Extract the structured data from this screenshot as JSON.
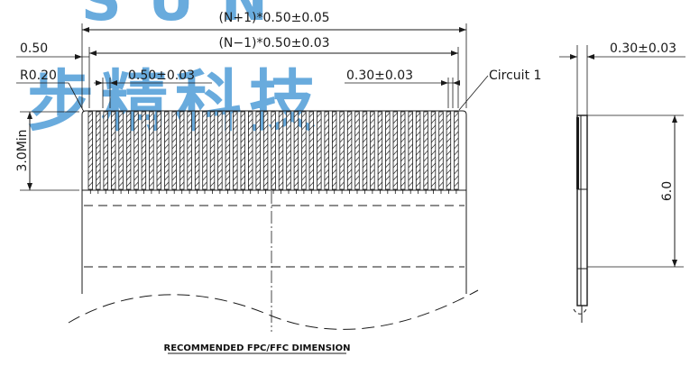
{
  "watermark": {
    "latin": "SUN",
    "chinese": "步精科技",
    "color": "#2f8ad0"
  },
  "dimensions": {
    "overall_width": "(N+1)*0.50±0.05",
    "inner_width": "(N−1)*0.50±0.03",
    "edge_offset": "0.50",
    "corner_radius": "R0.20",
    "pitch": "0.50±0.03",
    "conductor_width": "0.30±0.03",
    "circuit_label": "Circuit 1",
    "min_length": "3.0Min",
    "thickness": "0.30±0.03",
    "side_length": "6.0"
  },
  "caption": "RECOMMENDED FPC/FFC DIMENSION"
}
